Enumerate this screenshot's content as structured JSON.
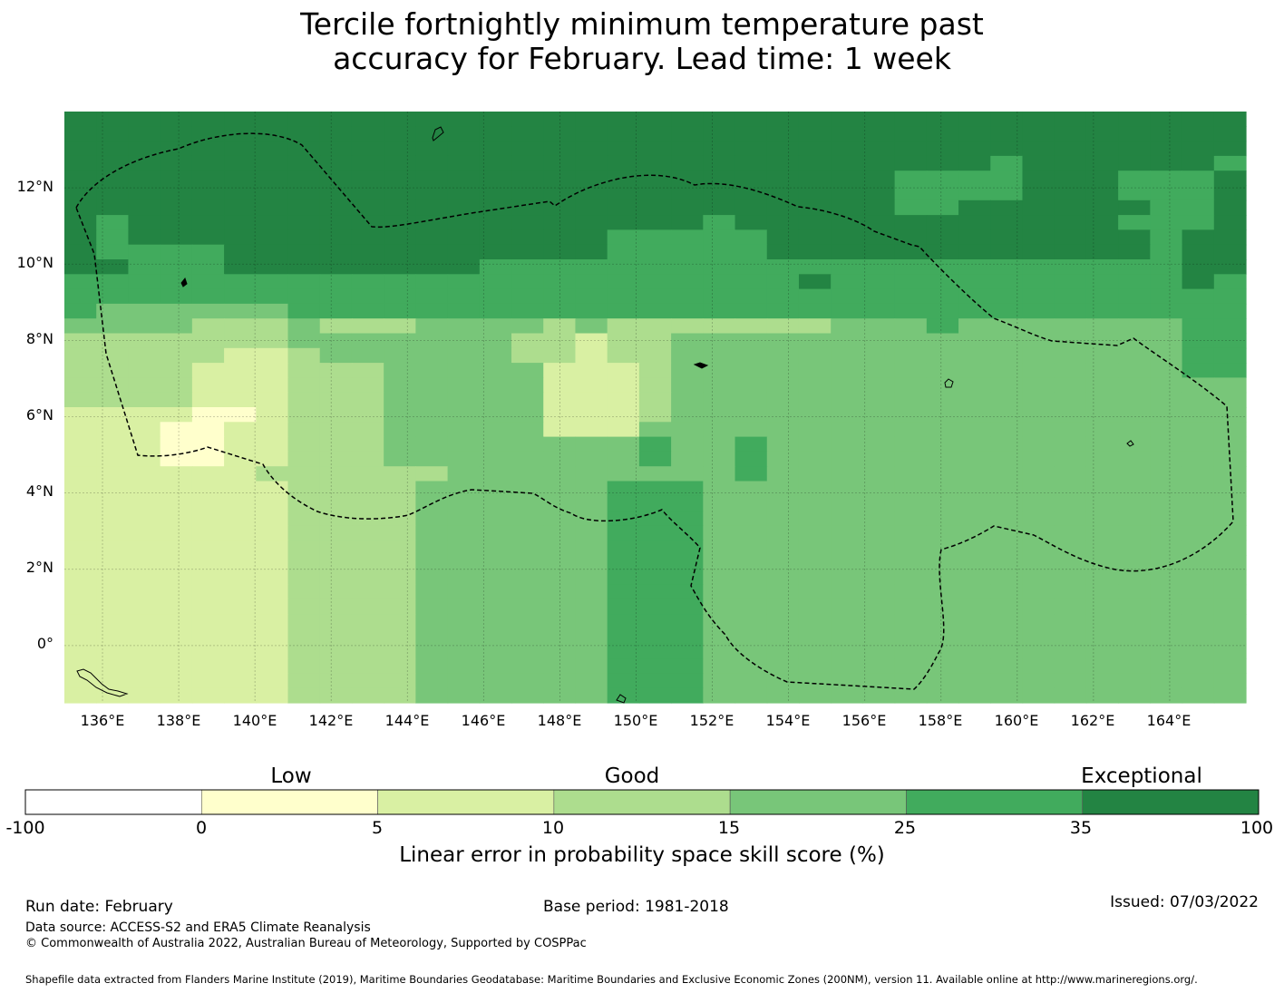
{
  "title": {
    "line1": "Tercile fortnightly minimum temperature past",
    "line2": "accuracy for February. Lead time: 1 week"
  },
  "axes": {
    "lat_labels": [
      "12°N",
      "10°N",
      "8°N",
      "6°N",
      "4°N",
      "2°N",
      "0°"
    ],
    "lon_labels": [
      "136°E",
      "138°E",
      "140°E",
      "142°E",
      "144°E",
      "146°E",
      "148°E",
      "150°E",
      "152°E",
      "154°E",
      "156°E",
      "158°E",
      "160°E",
      "162°E",
      "164°E"
    ]
  },
  "colorbar": {
    "categories": [
      "Low",
      "Good",
      "Exceptional"
    ],
    "ticks": [
      "-100",
      "0",
      "5",
      "10",
      "15",
      "25",
      "35",
      "100"
    ],
    "colors": [
      "#ffffff",
      "#ffffcc",
      "#d9f0a3",
      "#addd8e",
      "#78c679",
      "#41ab5d",
      "#238443"
    ],
    "label": "Linear error in probability space skill score (%)"
  },
  "footer": {
    "run_date": "Run date: February",
    "base_period": "Base period: 1981-2018",
    "issued": "Issued: 07/03/2022",
    "data_source": "Data source: ACCESS-S2 and ERA5 Climate Reanalysis",
    "copyright": "© Commonwealth of Australia 2022, Australian Bureau of Meteorology, Supported by COSPPac",
    "shapefile": "Shapefile data extracted from Flanders Marine Institute (2019), Maritime Boundaries Geodatabase: Maritime Boundaries and Exclusive Economic Zones (200NM), version 11. Available online at http://www.marineregions.org/."
  },
  "chart_data": {
    "type": "heatmap",
    "x_extent": [
      135,
      166
    ],
    "y_extent": [
      -1.5,
      14
    ],
    "cell_size_deg": 0.8333,
    "value_classes": [
      "-100 to 0",
      "0 to 5",
      "5 to 10",
      "10 to 15",
      "15 to 25",
      "25 to 35",
      "35 to 100"
    ],
    "level_rows_north_to_south": [
      "6666666666666666666666666666666666666",
      "6666666666666666666666666666666666666",
      "6666666666666666666666666666666666666",
      "6666666666666666666666666666656666665",
      "6666666666666666666666666655556665556",
      "6666666666666666666666666655556665556",
      "6666666666666666666666666655666666556",
      "6566666666666666666656666666666665556",
      "6566666666666666655555666666666666566",
      "6555566666666666655555666666666666566",
      "6655566666666555555555555555555555566",
      "5555555555555555555555565555555555565",
      "5555555555555555555555555555555555555",
      "5444444555555555555555555555555555555",
      "4444333433344443433333334445444444455",
      "3333333444444433233444444444444444455",
      "3333322344444433233444444444444444455",
      "3333222333444442223444444444444444455",
      "3333222333444442223444444444444444444",
      "3333222333444442223444444444444444444",
      "2222112333444442223444444444444444444",
      "2221122333444442224444444444444444444",
      "2221122333444444445445444444444444444",
      "2221122333444444445445444444444444444",
      "2222223333334444444445444444444444444",
      "2222222333344444455544444444444444444",
      "2222222333344444455544444444444444444",
      "2222222333344444455544444444444444444",
      "2222222333344444455544444444444444444",
      "2222222333344444455544444444444444444",
      "2222222333344444455544444444444444444",
      "2222222333344444455544444444444444444",
      "2222222333344444455544444444444444444",
      "2222222333344444455544444444444444444",
      "2222222333344444455544444444444444444",
      "2222222333344444455544444444444444444",
      "2222222333344444455544444444444444444",
      "2222222333344444455544444444444444444",
      "2222222333344444455544444444444444444",
      "2222222333344444455544444444444444444"
    ],
    "notes": "approximate gridded skill categories read from the map (level index 0-6 maps to value_classes)"
  }
}
